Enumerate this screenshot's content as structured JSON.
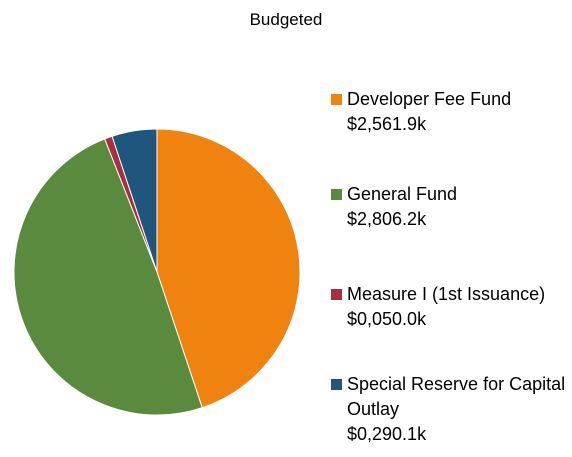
{
  "chart_data": {
    "type": "pie",
    "title": "Budgeted",
    "series": [
      {
        "name": "Developer Fee Fund",
        "color": "#f0820f"
      },
      {
        "name": "General Fund",
        "color": "#5a8a3e"
      },
      {
        "name": "Measure I (1st Issuance)",
        "color": "#a8303e"
      },
      {
        "name": "Special Reserve for Capital Outlay",
        "color": "#1f567e"
      }
    ],
    "values": [
      2561.9,
      2806.2,
      50.0,
      290.1
    ],
    "value_labels": [
      "$2,561.9k",
      "$2,806.2k",
      "$0,050.0k",
      "$0,290.1k"
    ]
  }
}
